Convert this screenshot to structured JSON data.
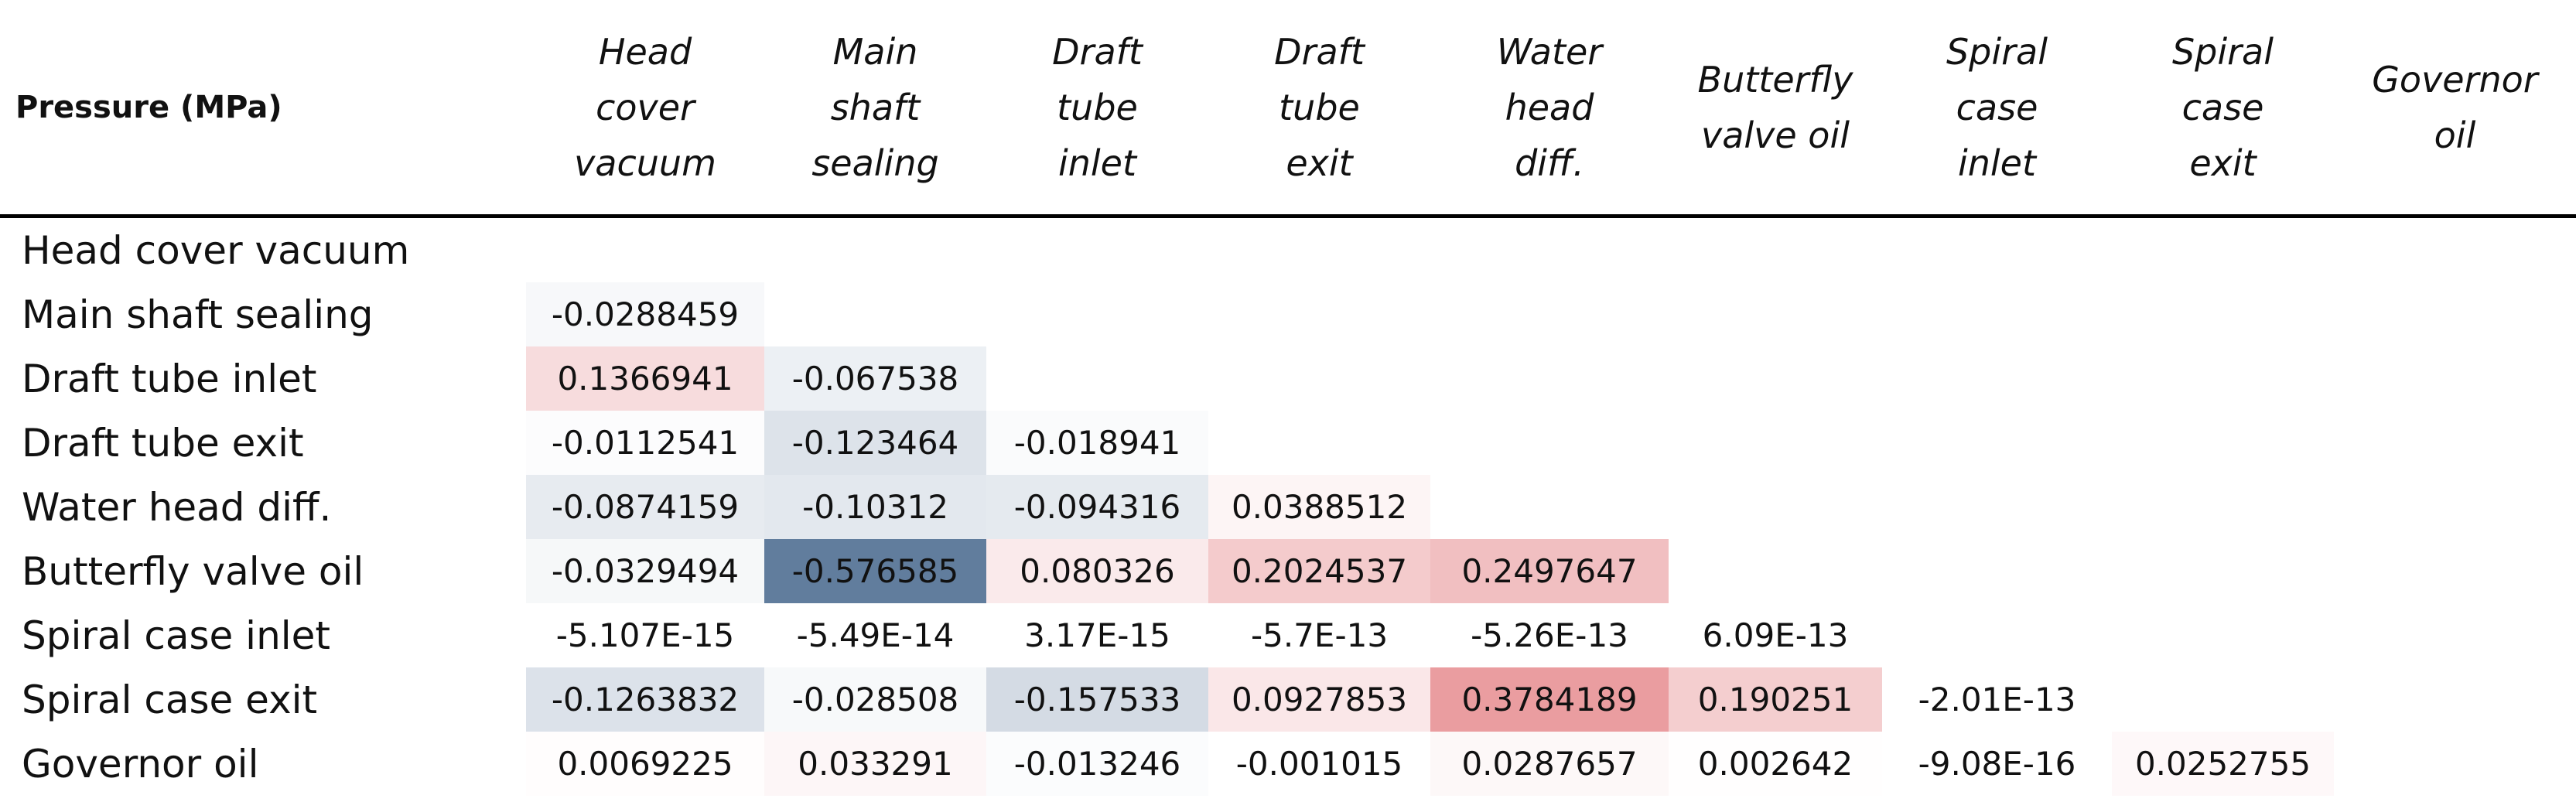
{
  "header": {
    "corner": "Pressure (MPa)",
    "columns": [
      [
        "Head",
        "cover",
        "vacuum"
      ],
      [
        "Main",
        "shaft",
        "sealing"
      ],
      [
        "Draft",
        "tube",
        "inlet"
      ],
      [
        "Draft",
        "tube",
        "exit"
      ],
      [
        "Water",
        "head",
        "diff."
      ],
      [
        "Butterfly",
        "valve oil"
      ],
      [
        "Spiral",
        "case",
        "inlet"
      ],
      [
        "Spiral",
        "case",
        "exit"
      ],
      [
        "Governor",
        "oil"
      ]
    ]
  },
  "table": {
    "rows": [
      {
        "label": "Head cover vacuum",
        "cells": []
      },
      {
        "label": "Main shaft sealing",
        "cells": [
          "-0.0288459"
        ]
      },
      {
        "label": "Draft tube inlet",
        "cells": [
          "0.1366941",
          "-0.067538"
        ]
      },
      {
        "label": "Draft tube exit",
        "cells": [
          "-0.0112541",
          "-0.123464",
          "-0.018941"
        ]
      },
      {
        "label": "Water head diff.",
        "cells": [
          "-0.0874159",
          "-0.10312",
          "-0.094316",
          "0.0388512"
        ]
      },
      {
        "label": "Butterfly valve oil",
        "cells": [
          "-0.0329494",
          "-0.576585",
          "0.080326",
          "0.2024537",
          "0.2497647"
        ]
      },
      {
        "label": "Spiral case inlet",
        "cells": [
          "-5.107E-15",
          "-5.49E-14",
          "3.17E-15",
          "-5.7E-13",
          "-5.26E-13",
          "6.09E-13"
        ]
      },
      {
        "label": "Spiral case exit",
        "cells": [
          "-0.1263832",
          "-0.028508",
          "-0.157533",
          "0.0927853",
          "0.3784189",
          "0.190251",
          "-2.01E-13"
        ]
      },
      {
        "label": "Governor oil",
        "cells": [
          "0.0069225",
          "0.033291",
          "-0.013246",
          "-0.001015",
          "0.0287657",
          "0.002642",
          "-9.08E-16",
          "0.0252755"
        ]
      }
    ]
  }
}
